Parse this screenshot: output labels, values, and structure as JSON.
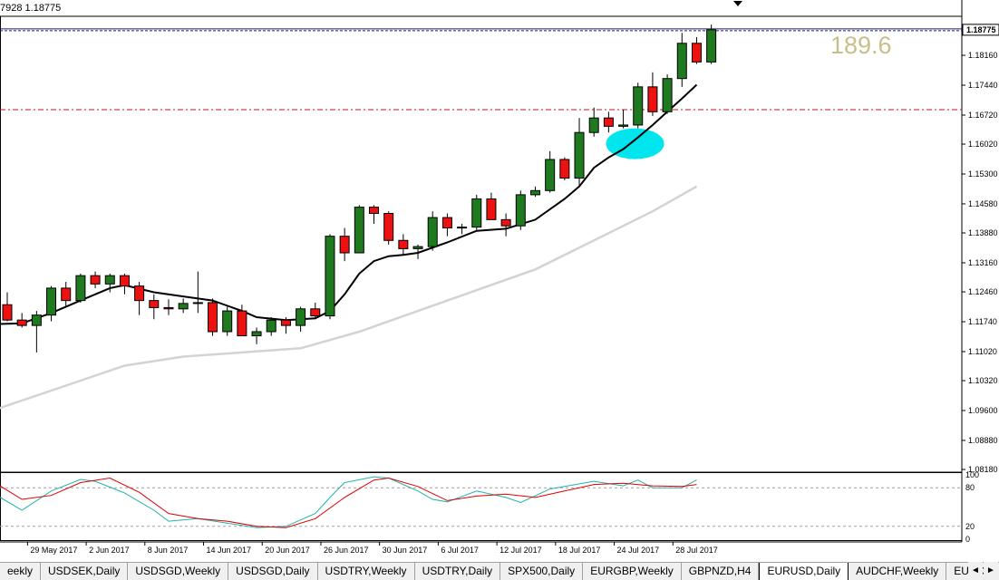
{
  "header": {
    "ohlc_text": "7928 1.18775"
  },
  "annotation": {
    "big_number": "189.6"
  },
  "current_price_label": "1.18775",
  "price_axis": {
    "min": 1.0818,
    "max": 1.191,
    "ticks": [
      "1.18160",
      "1.17440",
      "1.16720",
      "1.16020",
      "1.15300",
      "1.14580",
      "1.13880",
      "1.13160",
      "1.12460",
      "1.11740",
      "1.11020",
      "1.10320",
      "1.09600",
      "1.08880",
      "1.08180"
    ]
  },
  "stochastic": {
    "ticks": [
      "100",
      "80",
      "20",
      "0"
    ],
    "levels": [
      80,
      20
    ],
    "main_color": "#20b2aa",
    "signal_color": "#dd0000"
  },
  "date_axis": {
    "labels": [
      {
        "bar": -1,
        "text": "17"
      },
      {
        "bar": 2,
        "text": "29 May 2017"
      },
      {
        "bar": 6,
        "text": "2 Jun 2017"
      },
      {
        "bar": 10,
        "text": "8 Jun 2017"
      },
      {
        "bar": 14,
        "text": "14 Jun 2017"
      },
      {
        "bar": 18,
        "text": "20 Jun 2017"
      },
      {
        "bar": 22,
        "text": "26 Jun 2017"
      },
      {
        "bar": 26,
        "text": "30 Jun 2017"
      },
      {
        "bar": 30,
        "text": "6 Jul 2017"
      },
      {
        "bar": 34,
        "text": "12 Jul 2017"
      },
      {
        "bar": 38,
        "text": "18 Jul 2017"
      },
      {
        "bar": 42,
        "text": "24 Jul 2017"
      },
      {
        "bar": 46,
        "text": "28 Jul 2017"
      }
    ]
  },
  "colors": {
    "bull": "#1f7a1f",
    "bear": "#ee1111",
    "fast_ma": "#000000",
    "slow_ma": "#d3d3d3",
    "resistance_line": "#c01a1a",
    "price_line": "#1a1a6e",
    "highlight": "#00e5ee"
  },
  "lines": {
    "resistance_price": 1.1685,
    "current_price": 1.18775
  },
  "highlight_ellipse": {
    "bar": 42.8,
    "price": 1.1603
  },
  "chart_data": {
    "type": "candlestick",
    "symbol": "EURUSD",
    "timeframe": "Daily",
    "ohlc": [
      [
        1.1215,
        1.1245,
        1.1175,
        1.1178
      ],
      [
        1.1178,
        1.1195,
        1.116,
        1.1165
      ],
      [
        1.1165,
        1.12,
        1.11,
        1.119
      ],
      [
        1.119,
        1.126,
        1.1175,
        1.1255
      ],
      [
        1.1255,
        1.127,
        1.121,
        1.1225
      ],
      [
        1.1225,
        1.129,
        1.122,
        1.1285
      ],
      [
        1.1285,
        1.1295,
        1.1255,
        1.1265
      ],
      [
        1.1265,
        1.129,
        1.1245,
        1.1285
      ],
      [
        1.1285,
        1.129,
        1.124,
        1.126
      ],
      [
        1.126,
        1.127,
        1.119,
        1.1225
      ],
      [
        1.1225,
        1.124,
        1.118,
        1.1208
      ],
      [
        1.1208,
        1.1228,
        1.119,
        1.1205
      ],
      [
        1.1205,
        1.123,
        1.1195,
        1.1218
      ],
      [
        1.1218,
        1.1295,
        1.1195,
        1.122
      ],
      [
        1.122,
        1.123,
        1.114,
        1.115
      ],
      [
        1.115,
        1.121,
        1.114,
        1.12
      ],
      [
        1.12,
        1.1215,
        1.114,
        1.114
      ],
      [
        1.114,
        1.116,
        1.112,
        1.115
      ],
      [
        1.115,
        1.1185,
        1.114,
        1.1178
      ],
      [
        1.1178,
        1.1185,
        1.1145,
        1.1165
      ],
      [
        1.1165,
        1.121,
        1.115,
        1.1205
      ],
      [
        1.1205,
        1.122,
        1.118,
        1.1188
      ],
      [
        1.1188,
        1.1385,
        1.118,
        1.138
      ],
      [
        1.138,
        1.14,
        1.132,
        1.134
      ],
      [
        1.134,
        1.1455,
        1.134,
        1.145
      ],
      [
        1.145,
        1.1455,
        1.141,
        1.1435
      ],
      [
        1.1435,
        1.144,
        1.136,
        1.137
      ],
      [
        1.137,
        1.1385,
        1.1335,
        1.135
      ],
      [
        1.135,
        1.136,
        1.1325,
        1.1355
      ],
      [
        1.1355,
        1.144,
        1.1345,
        1.1425
      ],
      [
        1.1425,
        1.1435,
        1.138,
        1.14
      ],
      [
        1.14,
        1.141,
        1.1385,
        1.1402
      ],
      [
        1.1402,
        1.148,
        1.1395,
        1.147
      ],
      [
        1.147,
        1.1485,
        1.142,
        1.142
      ],
      [
        1.142,
        1.1435,
        1.138,
        1.1405
      ],
      [
        1.1405,
        1.149,
        1.1395,
        1.148
      ],
      [
        1.148,
        1.15,
        1.1475,
        1.149
      ],
      [
        1.149,
        1.1585,
        1.1485,
        1.1565
      ],
      [
        1.1565,
        1.157,
        1.1515,
        1.152
      ],
      [
        1.152,
        1.1665,
        1.15,
        1.163
      ],
      [
        1.163,
        1.169,
        1.162,
        1.1665
      ],
      [
        1.1665,
        1.168,
        1.163,
        1.1645
      ],
      [
        1.1645,
        1.1685,
        1.164,
        1.1648
      ],
      [
        1.1648,
        1.175,
        1.164,
        1.174
      ],
      [
        1.174,
        1.1775,
        1.167,
        1.168
      ],
      [
        1.168,
        1.177,
        1.1675,
        1.176
      ],
      [
        1.176,
        1.187,
        1.174,
        1.1845
      ],
      [
        1.1845,
        1.186,
        1.1795,
        1.18
      ],
      [
        1.18,
        1.189,
        1.1795,
        1.18775
      ]
    ],
    "ma_fast": [
      {
        "bar": -1,
        "v": 1.1168
      },
      {
        "bar": 1,
        "v": 1.117
      },
      {
        "bar": 3,
        "v": 1.1195
      },
      {
        "bar": 5,
        "v": 1.1225
      },
      {
        "bar": 7,
        "v": 1.1255
      },
      {
        "bar": 8,
        "v": 1.1262
      },
      {
        "bar": 10,
        "v": 1.1245
      },
      {
        "bar": 12,
        "v": 1.1235
      },
      {
        "bar": 14,
        "v": 1.1225
      },
      {
        "bar": 16,
        "v": 1.12
      },
      {
        "bar": 17,
        "v": 1.1185
      },
      {
        "bar": 19,
        "v": 1.1178
      },
      {
        "bar": 21,
        "v": 1.1182
      },
      {
        "bar": 22,
        "v": 1.12
      },
      {
        "bar": 23,
        "v": 1.124
      },
      {
        "bar": 24,
        "v": 1.129
      },
      {
        "bar": 25,
        "v": 1.132
      },
      {
        "bar": 26,
        "v": 1.1332
      },
      {
        "bar": 27,
        "v": 1.1335
      },
      {
        "bar": 28,
        "v": 1.134
      },
      {
        "bar": 30,
        "v": 1.1365
      },
      {
        "bar": 32,
        "v": 1.1393
      },
      {
        "bar": 34,
        "v": 1.1398
      },
      {
        "bar": 36,
        "v": 1.142
      },
      {
        "bar": 38,
        "v": 1.147
      },
      {
        "bar": 39,
        "v": 1.15
      },
      {
        "bar": 40,
        "v": 1.1545
      },
      {
        "bar": 41,
        "v": 1.157
      },
      {
        "bar": 42,
        "v": 1.159
      },
      {
        "bar": 43,
        "v": 1.1618
      },
      {
        "bar": 44,
        "v": 1.1648
      },
      {
        "bar": 45,
        "v": 1.168
      },
      {
        "bar": 46,
        "v": 1.1712
      },
      {
        "bar": 47,
        "v": 1.1745
      }
    ],
    "ma_slow": [
      {
        "bar": -1,
        "v": 1.096
      },
      {
        "bar": 4,
        "v": 1.102
      },
      {
        "bar": 8,
        "v": 1.1068
      },
      {
        "bar": 12,
        "v": 1.109
      },
      {
        "bar": 16,
        "v": 1.11
      },
      {
        "bar": 20,
        "v": 1.111
      },
      {
        "bar": 24,
        "v": 1.115
      },
      {
        "bar": 28,
        "v": 1.12
      },
      {
        "bar": 32,
        "v": 1.125
      },
      {
        "bar": 36,
        "v": 1.13
      },
      {
        "bar": 40,
        "v": 1.137
      },
      {
        "bar": 44,
        "v": 1.144
      },
      {
        "bar": 47,
        "v": 1.15
      }
    ],
    "stoch_main": [
      {
        "bar": -1,
        "v": 72
      },
      {
        "bar": 1,
        "v": 45
      },
      {
        "bar": 3,
        "v": 75
      },
      {
        "bar": 5,
        "v": 93
      },
      {
        "bar": 6,
        "v": 90
      },
      {
        "bar": 8,
        "v": 72
      },
      {
        "bar": 10,
        "v": 45
      },
      {
        "bar": 11,
        "v": 28
      },
      {
        "bar": 13,
        "v": 32
      },
      {
        "bar": 15,
        "v": 25
      },
      {
        "bar": 17,
        "v": 18
      },
      {
        "bar": 19,
        "v": 20
      },
      {
        "bar": 21,
        "v": 40
      },
      {
        "bar": 22,
        "v": 65
      },
      {
        "bar": 23,
        "v": 88
      },
      {
        "bar": 25,
        "v": 97
      },
      {
        "bar": 26,
        "v": 95
      },
      {
        "bar": 28,
        "v": 75
      },
      {
        "bar": 29,
        "v": 62
      },
      {
        "bar": 30,
        "v": 58
      },
      {
        "bar": 32,
        "v": 75
      },
      {
        "bar": 34,
        "v": 65
      },
      {
        "bar": 35,
        "v": 57
      },
      {
        "bar": 37,
        "v": 78
      },
      {
        "bar": 38,
        "v": 82
      },
      {
        "bar": 40,
        "v": 90
      },
      {
        "bar": 42,
        "v": 83
      },
      {
        "bar": 43,
        "v": 92
      },
      {
        "bar": 44,
        "v": 80
      },
      {
        "bar": 46,
        "v": 80
      },
      {
        "bar": 47,
        "v": 92
      }
    ],
    "stoch_signal": [
      {
        "bar": -1,
        "v": 90
      },
      {
        "bar": 1,
        "v": 62
      },
      {
        "bar": 3,
        "v": 68
      },
      {
        "bar": 5,
        "v": 88
      },
      {
        "bar": 7,
        "v": 95
      },
      {
        "bar": 9,
        "v": 73
      },
      {
        "bar": 11,
        "v": 40
      },
      {
        "bar": 13,
        "v": 32
      },
      {
        "bar": 15,
        "v": 28
      },
      {
        "bar": 17,
        "v": 20
      },
      {
        "bar": 19,
        "v": 18
      },
      {
        "bar": 21,
        "v": 32
      },
      {
        "bar": 23,
        "v": 65
      },
      {
        "bar": 25,
        "v": 92
      },
      {
        "bar": 26,
        "v": 95
      },
      {
        "bar": 28,
        "v": 82
      },
      {
        "bar": 30,
        "v": 60
      },
      {
        "bar": 32,
        "v": 67
      },
      {
        "bar": 34,
        "v": 70
      },
      {
        "bar": 36,
        "v": 65
      },
      {
        "bar": 38,
        "v": 75
      },
      {
        "bar": 40,
        "v": 85
      },
      {
        "bar": 42,
        "v": 87
      },
      {
        "bar": 44,
        "v": 83
      },
      {
        "bar": 46,
        "v": 82
      },
      {
        "bar": 47,
        "v": 85
      }
    ]
  },
  "tabs": [
    {
      "label": "eekly",
      "active": false
    },
    {
      "label": "USDSEK,Daily",
      "active": false
    },
    {
      "label": "USDSGD,Weekly",
      "active": false
    },
    {
      "label": "USDSGD,Daily",
      "active": false
    },
    {
      "label": "USDTRY,Weekly",
      "active": false
    },
    {
      "label": "USDTRY,Daily",
      "active": false
    },
    {
      "label": "SPX500,Daily",
      "active": false
    },
    {
      "label": "EURGBP,Weekly",
      "active": false
    },
    {
      "label": "GBPNZD,H4",
      "active": false
    },
    {
      "label": "EURUSD,Daily",
      "active": true
    },
    {
      "label": "AUDCHF,Weekly",
      "active": false
    },
    {
      "label": "EURCH",
      "active": false
    }
  ],
  "tab_nav": {
    "left": "◄",
    "right": "►"
  }
}
